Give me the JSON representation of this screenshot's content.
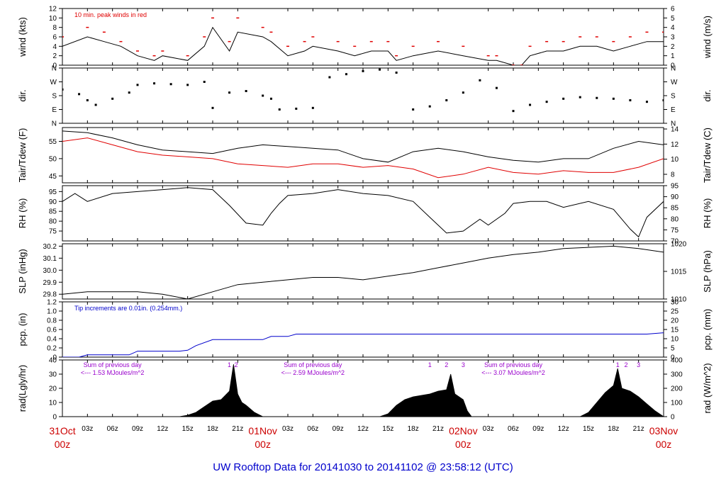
{
  "title": "UW Rooftop Data for 20141030  to  20141102 @ 23:58:12  (UTC)",
  "time_axis": {
    "ticks": [
      "03z",
      "06z",
      "09z",
      "12z",
      "15z",
      "18z",
      "21z",
      "03z",
      "06z",
      "09z",
      "12z",
      "15z",
      "18z",
      "21z",
      "03z",
      "06z",
      "09z",
      "12z",
      "15z",
      "18z",
      "21z"
    ],
    "tick_hours": [
      3,
      6,
      9,
      12,
      15,
      18,
      21,
      27,
      30,
      33,
      36,
      39,
      42,
      45,
      51,
      54,
      57,
      60,
      63,
      66,
      69
    ],
    "date_labels": [
      {
        "date": "31Oct",
        "hour": "00z",
        "at_hour": 0
      },
      {
        "date": "01Nov",
        "hour": "00z",
        "at_hour": 24
      },
      {
        "date": "02Nov",
        "hour": "00z",
        "at_hour": 48
      },
      {
        "date": "03Nov",
        "hour": "00z",
        "at_hour": 72
      }
    ],
    "range_hours": [
      0,
      72
    ]
  },
  "colors": {
    "main": "#000000",
    "peak": "#e00000",
    "dew": "#e00000",
    "precip": "#0000cc",
    "rad_note": "#9900cc",
    "title": "#0000cc",
    "date": "#cc0000"
  },
  "chart_data": [
    {
      "type": "line",
      "panel": "wind",
      "ylabel": "wind (kts)",
      "ylabel_right": "wind (m/s)",
      "ylim": [
        0,
        12
      ],
      "yticks": [
        "0",
        "2",
        "4",
        "6",
        "8",
        "10",
        "12"
      ],
      "yticks_right": [
        "0",
        "1",
        "2",
        "3",
        "4",
        "5",
        "6"
      ],
      "annotation": "10 min. peak winds in red",
      "series": [
        {
          "x": [
            0,
            3,
            5,
            7,
            9,
            11,
            12,
            15,
            17,
            18,
            20,
            21,
            24,
            25,
            27,
            29,
            30,
            33,
            35,
            37,
            39,
            40,
            42,
            45,
            48,
            51,
            52,
            54,
            55,
            56,
            58,
            60,
            62,
            64,
            66,
            68,
            70,
            72
          ],
          "values": [
            4,
            6,
            5,
            4,
            2,
            1,
            2,
            1,
            4,
            8,
            3,
            7,
            6,
            5,
            2,
            3,
            4,
            3,
            2,
            3,
            3,
            1,
            2,
            3,
            2,
            1,
            1,
            0,
            0,
            2,
            3,
            3,
            4,
            4,
            3,
            4,
            5,
            5
          ]
        },
        {
          "x": [
            0,
            3,
            5,
            7,
            9,
            11,
            12,
            15,
            17,
            18,
            20,
            21,
            24,
            25,
            27,
            29,
            30,
            33,
            35,
            37,
            39,
            40,
            42,
            45,
            48,
            51,
            52,
            54,
            55,
            56,
            58,
            60,
            62,
            64,
            66,
            68,
            70,
            72
          ],
          "values": [
            6,
            8,
            7,
            5,
            3,
            2,
            3,
            2,
            6,
            10,
            5,
            10,
            8,
            7,
            4,
            5,
            6,
            5,
            4,
            5,
            5,
            2,
            4,
            5,
            4,
            2,
            2,
            0,
            0,
            4,
            5,
            5,
            6,
            6,
            5,
            6,
            7,
            7
          ]
        }
      ]
    },
    {
      "type": "scatter",
      "panel": "direction",
      "ylabel": "dir.",
      "ylabel_right": "dir.",
      "ylim": [
        0,
        360
      ],
      "yticks": [
        "N",
        "E",
        "S",
        "W",
        "N"
      ],
      "yticks_right": [
        "N",
        "E",
        "S",
        "W",
        "N"
      ],
      "series": [
        {
          "x": [
            0,
            2,
            3,
            4,
            6,
            8,
            9,
            11,
            13,
            15,
            17,
            18,
            20,
            22,
            24,
            25,
            26,
            28,
            30,
            32,
            34,
            36,
            38,
            40,
            42,
            44,
            46,
            48,
            50,
            52,
            54,
            56,
            58,
            60,
            62,
            64,
            66,
            68,
            70,
            72
          ],
          "values": [
            220,
            190,
            150,
            120,
            160,
            200,
            250,
            260,
            255,
            250,
            270,
            100,
            200,
            210,
            180,
            160,
            90,
            95,
            100,
            300,
            320,
            340,
            350,
            330,
            90,
            110,
            150,
            200,
            280,
            230,
            80,
            120,
            140,
            160,
            170,
            165,
            160,
            150,
            140,
            150
          ]
        }
      ]
    },
    {
      "type": "line",
      "panel": "temperature",
      "ylabel": "Tair/Tdew (F)",
      "ylabel_right": "Tair/Tdew (C)",
      "ylim": [
        43,
        59
      ],
      "yticks": [
        "45",
        "50",
        "55"
      ],
      "yticks_right": [
        "8",
        "10",
        "12",
        "14"
      ],
      "series": [
        {
          "x": [
            0,
            3,
            6,
            9,
            12,
            15,
            18,
            21,
            24,
            27,
            30,
            33,
            36,
            39,
            42,
            45,
            48,
            51,
            54,
            57,
            60,
            63,
            66,
            69,
            72
          ],
          "values": [
            58,
            57.5,
            56,
            54,
            52.5,
            52,
            51.5,
            53,
            54,
            53.5,
            53,
            52.5,
            50,
            49,
            52,
            53,
            52,
            50.5,
            49.5,
            49,
            50,
            50,
            53,
            55,
            54
          ]
        },
        {
          "x": [
            0,
            3,
            6,
            9,
            12,
            15,
            18,
            21,
            24,
            27,
            30,
            33,
            36,
            39,
            42,
            45,
            48,
            51,
            54,
            57,
            60,
            63,
            66,
            69,
            72
          ],
          "values": [
            55,
            56,
            54,
            52,
            51,
            50.5,
            50,
            48.5,
            48,
            47.5,
            48.5,
            48.5,
            47.5,
            48,
            47,
            44.5,
            45.5,
            47.5,
            46,
            45.5,
            46.5,
            46,
            46,
            47.5,
            50
          ]
        }
      ]
    },
    {
      "type": "line",
      "panel": "rh",
      "ylabel": "RH (%)",
      "ylabel_right": "RH (%)",
      "ylim": [
        70,
        98
      ],
      "yticks": [
        "75",
        "80",
        "85",
        "90",
        "95"
      ],
      "yticks_right": [
        "70",
        "75",
        "80",
        "85",
        "90",
        "95"
      ],
      "series": [
        {
          "x": [
            0,
            1.5,
            3,
            6,
            9,
            12,
            15,
            18,
            20,
            22,
            24,
            25,
            26,
            27,
            30,
            33,
            36,
            39,
            42,
            44,
            46,
            48,
            50,
            51,
            53,
            54,
            56,
            58,
            60,
            63,
            66,
            68,
            69,
            70,
            72
          ],
          "values": [
            90,
            94,
            90,
            94,
            95,
            96,
            97,
            96,
            88,
            79,
            78,
            84,
            89,
            93,
            94,
            96,
            94,
            93,
            90,
            82,
            74,
            75,
            81,
            78,
            84,
            89,
            90,
            90,
            87,
            90,
            86,
            76,
            72,
            82,
            90
          ]
        }
      ]
    },
    {
      "type": "line",
      "panel": "pressure",
      "ylabel": "SLP (inHg)",
      "ylabel_right": "SLP (hPa)",
      "ylim": [
        29.76,
        30.22
      ],
      "yticks": [
        "29.8",
        "29.9",
        "30.0",
        "30.1",
        "30.2"
      ],
      "yticks_right": [
        "1010",
        "1015",
        "1020"
      ],
      "series": [
        {
          "x": [
            0,
            3,
            6,
            9,
            12,
            15,
            18,
            21,
            24,
            27,
            30,
            33,
            36,
            39,
            42,
            45,
            48,
            51,
            54,
            57,
            60,
            63,
            66,
            69,
            72
          ],
          "values": [
            29.8,
            29.82,
            29.82,
            29.82,
            29.8,
            29.76,
            29.82,
            29.88,
            29.9,
            29.92,
            29.94,
            29.94,
            29.92,
            29.95,
            29.98,
            30.02,
            30.06,
            30.1,
            30.13,
            30.15,
            30.18,
            30.19,
            30.2,
            30.18,
            30.15
          ]
        }
      ]
    },
    {
      "type": "line",
      "panel": "precipitation",
      "ylabel": "pcp. (in)",
      "ylabel_right": "pcp. (mm)",
      "ylim": [
        0,
        1.2
      ],
      "yticks": [
        "0",
        "0.2",
        "0.4",
        "0.6",
        "0.8",
        "1.0",
        "1.2"
      ],
      "yticks_right": [
        "0",
        "5",
        "10",
        "15",
        "20",
        "25",
        "30"
      ],
      "annotation": "Tip increments are 0.01in. (0.254mm.)",
      "series": [
        {
          "x": [
            0,
            2,
            3,
            8,
            9,
            14,
            15,
            16,
            18,
            24,
            25,
            27,
            28,
            40,
            50,
            60,
            70,
            72
          ],
          "values": [
            0,
            0,
            0.05,
            0.05,
            0.13,
            0.13,
            0.15,
            0.25,
            0.38,
            0.38,
            0.45,
            0.45,
            0.5,
            0.5,
            0.5,
            0.5,
            0.5,
            0.53
          ]
        }
      ]
    },
    {
      "type": "area",
      "panel": "radiation",
      "ylabel": "rad(Lgly/hr)",
      "ylabel_right": "rad (W/m^2)",
      "ylim": [
        0,
        40
      ],
      "yticks": [
        "0",
        "10",
        "20",
        "30",
        "40"
      ],
      "yticks_right": [
        "0",
        "100",
        "200",
        "300",
        "400"
      ],
      "notes": [
        {
          "line1": "Sum of previous day",
          "line2": "<--- 1.53 MJoules/m^2",
          "at_hour": 6
        },
        {
          "line1": "Sum of previous day",
          "line2": "<--- 2.59 MJoules/m^2",
          "at_hour": 30
        },
        {
          "line1": "Sum of previous day",
          "line2": "<--- 3.07 MJoules/m^2",
          "at_hour": 54
        }
      ],
      "markers": [
        {
          "label": "1",
          "at_hour": 20
        },
        {
          "label": "2",
          "at_hour": 20.8
        },
        {
          "label": "1",
          "at_hour": 44
        },
        {
          "label": "2",
          "at_hour": 46
        },
        {
          "label": "3",
          "at_hour": 48
        },
        {
          "label": "1",
          "at_hour": 66.5
        },
        {
          "label": "2",
          "at_hour": 67.5
        },
        {
          "label": "3",
          "at_hour": 69
        }
      ],
      "series": [
        {
          "x": [
            0,
            14,
            15,
            16,
            17,
            18,
            19,
            20,
            20.5,
            21,
            21.5,
            22,
            23,
            24,
            38,
            39,
            40,
            41,
            42,
            43,
            44,
            45,
            46,
            46.5,
            47,
            48,
            48.5,
            49,
            62,
            63,
            64,
            65,
            66,
            66.5,
            67,
            68,
            69,
            70,
            71,
            72
          ],
          "values": [
            0,
            0,
            1,
            3,
            7,
            11,
            12,
            18,
            37,
            16,
            10,
            8,
            3,
            0,
            0,
            2,
            8,
            12,
            14,
            15,
            16,
            18,
            19,
            30,
            16,
            12,
            4,
            0,
            0,
            3,
            10,
            17,
            22,
            34,
            20,
            18,
            14,
            9,
            4,
            0
          ]
        }
      ]
    }
  ]
}
